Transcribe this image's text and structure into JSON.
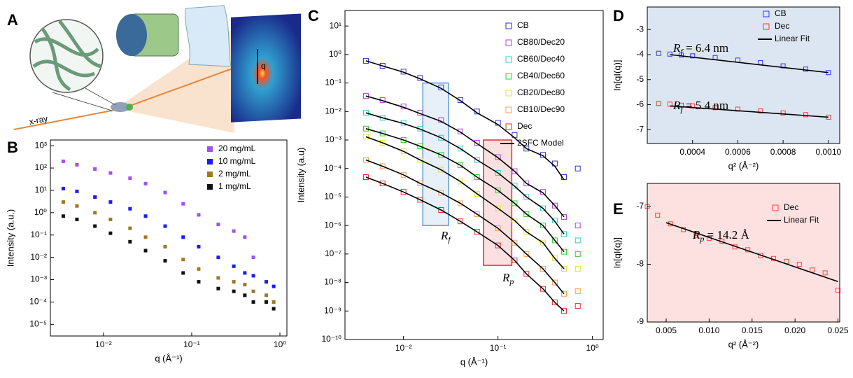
{
  "panels": [
    "A",
    "B",
    "C",
    "D",
    "E"
  ],
  "illustration": {
    "beam_label": "x-ray",
    "vector_label": "q"
  },
  "chart_data": [
    {
      "type": "scatter",
      "x_label": "q (Å⁻¹)",
      "y_label": "Intensity (a.u.)",
      "log_x": true,
      "log_y": true,
      "marker": "filled-square",
      "legend": "upper right",
      "xlim": [
        0.0025,
        1.2
      ],
      "ylim": [
        3e-06,
        1800
      ],
      "xticks": [
        {
          "value": 0.01,
          "label": "10⁻²"
        },
        {
          "value": 0.1,
          "label": "10⁻¹"
        },
        {
          "value": 1,
          "label": "10⁰"
        }
      ],
      "yticks": [
        {
          "value": 1e-05,
          "label": "10⁻⁵"
        },
        {
          "value": 0.0001,
          "label": "10⁻⁴"
        },
        {
          "value": 0.001,
          "label": "10⁻³"
        },
        {
          "value": 0.01,
          "label": "10⁻²"
        },
        {
          "value": 0.1,
          "label": "10⁻¹"
        },
        {
          "value": 1,
          "label": "10⁰"
        },
        {
          "value": 10,
          "label": "10¹"
        },
        {
          "value": 100,
          "label": "10²"
        },
        {
          "value": 1000,
          "label": "10³"
        }
      ],
      "x": [
        0.0035,
        0.005,
        0.008,
        0.012,
        0.02,
        0.03,
        0.05,
        0.08,
        0.12,
        0.2,
        0.3,
        0.4,
        0.5,
        0.7,
        0.85
      ],
      "series": [
        {
          "name": "20 mg/mL",
          "color": "#a050f0",
          "values": [
            200,
            140,
            90,
            60,
            35,
            20,
            8,
            2.5,
            0.8,
            0.3,
            0.15,
            0.08,
            0.01,
            null,
            null
          ]
        },
        {
          "name": "10 mg/mL",
          "color": "#1a1aff",
          "values": [
            12,
            9,
            5,
            3,
            1.5,
            0.7,
            0.25,
            0.08,
            0.03,
            0.01,
            0.004,
            0.002,
            0.0015,
            0.0008,
            0.0005
          ]
        },
        {
          "name": "2 mg/mL",
          "color": "#a07820",
          "values": [
            3,
            2,
            1,
            0.5,
            0.2,
            0.08,
            0.03,
            0.008,
            0.003,
            0.0012,
            0.0008,
            0.0006,
            0.0003,
            0.0002,
            0.0001
          ]
        },
        {
          "name": "1 mg/mL",
          "color": "#111111",
          "values": [
            0.7,
            0.5,
            0.25,
            0.12,
            0.05,
            0.02,
            0.007,
            0.002,
            0.0008,
            0.0004,
            0.0003,
            0.0002,
            0.0001,
            0.0001,
            5e-05
          ]
        }
      ]
    },
    {
      "type": "scatter",
      "x_label": "q (Å⁻¹)",
      "y_label": "Intensity (a.u)",
      "log_x": true,
      "log_y": true,
      "marker": "open-square",
      "legend": "upper right",
      "xlim": [
        0.0024,
        1.3
      ],
      "ylim": [
        1e-10,
        35
      ],
      "xticks": [
        {
          "value": 0.01,
          "label": "10⁻²"
        },
        {
          "value": 0.1,
          "label": "10⁻¹"
        },
        {
          "value": 1,
          "label": "10⁰"
        }
      ],
      "yticks": [
        {
          "value": 1e-10,
          "label": "10⁻¹⁰"
        },
        {
          "value": 1e-09,
          "label": "10⁻⁹"
        },
        {
          "value": 1e-08,
          "label": "10⁻⁸"
        },
        {
          "value": 1e-07,
          "label": "10⁻⁷"
        },
        {
          "value": 1e-06,
          "label": "10⁻⁶"
        },
        {
          "value": 1e-05,
          "label": "10⁻⁵"
        },
        {
          "value": 0.0001,
          "label": "10⁻⁴"
        },
        {
          "value": 0.001,
          "label": "10⁻³"
        },
        {
          "value": 0.01,
          "label": "10⁻²"
        },
        {
          "value": 0.1,
          "label": "10⁻¹"
        },
        {
          "value": 1,
          "label": "10⁰"
        },
        {
          "value": 10,
          "label": "10¹"
        }
      ],
      "x": [
        0.004,
        0.006,
        0.01,
        0.015,
        0.025,
        0.04,
        0.06,
        0.1,
        0.15,
        0.2,
        0.3,
        0.4,
        0.5,
        0.7
      ],
      "model": {
        "name": "2SFC Model",
        "color": "#000000"
      },
      "series": [
        {
          "name": "CB",
          "color": "#3333cc",
          "values": [
            0.6,
            0.4,
            0.25,
            0.15,
            0.07,
            0.025,
            0.01,
            0.004,
            0.0015,
            0.0005,
            0.0003,
            0.00015,
            5e-05,
            0.0001
          ],
          "model": [
            0.6,
            0.4,
            0.24,
            0.14,
            0.065,
            0.024,
            0.009,
            0.0035,
            0.0012,
            0.0005,
            0.00028,
            0.00012,
            4e-05,
            null
          ]
        },
        {
          "name": "CB80/Dec20",
          "color": "#b040d0",
          "values": [
            0.035,
            0.025,
            0.015,
            0.009,
            0.005,
            0.002,
            0.0008,
            0.00025,
            8e-05,
            3e-05,
            1.5e-05,
            5e-06,
            2e-06,
            1e-06
          ],
          "model": [
            0.035,
            0.024,
            0.014,
            0.0085,
            0.0045,
            0.0019,
            0.00075,
            0.00024,
            8e-05,
            3e-05,
            1.4e-05,
            5e-06,
            2e-06,
            null
          ]
        },
        {
          "name": "CB60/Dec40",
          "color": "#33cccc",
          "values": [
            0.009,
            0.006,
            0.004,
            0.0025,
            0.0012,
            0.0005,
            0.0002,
            7e-05,
            2.5e-05,
            1e-05,
            4e-06,
            1.5e-06,
            5e-07,
            3e-07
          ],
          "model": [
            0.009,
            0.006,
            0.0038,
            0.0024,
            0.0012,
            0.0005,
            0.0002,
            7e-05,
            2.4e-05,
            1e-05,
            4e-06,
            1.4e-06,
            5e-07,
            null
          ]
        },
        {
          "name": "CB40/Dec60",
          "color": "#33cc33",
          "values": [
            0.0025,
            0.0017,
            0.001,
            0.0006,
            0.0003,
            0.00013,
            5e-05,
            1.7e-05,
            6e-06,
            2.5e-06,
            1e-06,
            3e-07,
            1.2e-07,
            1e-07
          ],
          "model": [
            0.0025,
            0.0017,
            0.001,
            0.0006,
            0.0003,
            0.00013,
            5e-05,
            1.7e-05,
            6e-06,
            2.5e-06,
            1e-06,
            3e-07,
            1.2e-07,
            null
          ]
        },
        {
          "name": "CB20/Dec80",
          "color": "#e6e033",
          "values": [
            0.0013,
            0.0008,
            0.0004,
            0.0002,
            9e-05,
            3.5e-05,
            1.3e-05,
            4e-06,
            1.5e-06,
            6e-07,
            2.5e-07,
            7e-08,
            3e-08,
            3e-08
          ],
          "model": [
            0.0013,
            0.0008,
            0.0004,
            0.0002,
            9e-05,
            3.5e-05,
            1.3e-05,
            4e-06,
            1.5e-06,
            6e-07,
            2.5e-07,
            7e-08,
            3e-08,
            null
          ]
        },
        {
          "name": "CB10/Dec90",
          "color": "#f0a050",
          "values": [
            0.0002,
            0.00012,
            6e-05,
            3e-05,
            1.4e-05,
            6e-06,
            2.5e-06,
            8e-07,
            2.5e-07,
            1e-07,
            3e-08,
            1e-08,
            4e-09,
            5e-09
          ],
          "model": [
            0.0002,
            0.00012,
            6e-05,
            3e-05,
            1.4e-05,
            6e-06,
            2.5e-06,
            8e-07,
            2.5e-07,
            1e-07,
            3e-08,
            1e-08,
            4e-09,
            null
          ]
        },
        {
          "name": "Dec",
          "color": "#e03030",
          "values": [
            5e-05,
            3e-05,
            1.5e-05,
            8e-06,
            3.5e-06,
            1.4e-06,
            6e-07,
            2e-07,
            6e-08,
            2e-08,
            6e-09,
            2e-09,
            1e-09,
            1.5e-09
          ],
          "model": [
            5e-05,
            3e-05,
            1.5e-05,
            8e-06,
            3.5e-06,
            1.4e-06,
            6e-07,
            2e-07,
            6e-08,
            2e-08,
            6e-09,
            2e-09,
            1e-09,
            null
          ]
        }
      ],
      "regions": [
        {
          "symbol": "R",
          "subscript": "f",
          "color": "#5b9bd5",
          "xrange": [
            0.016,
            0.03
          ],
          "yrange": [
            1e-06,
            0.1
          ]
        },
        {
          "symbol": "R",
          "subscript": "p",
          "color": "#e03030",
          "xrange": [
            0.07,
            0.14
          ],
          "yrange": [
            4e-08,
            0.001
          ]
        }
      ]
    },
    {
      "type": "scatter",
      "x_label": "q² (Å⁻²)",
      "y_label": "ln[qI(q)]",
      "marker": "open-square",
      "legend": "upper right",
      "background": "#dce6f2",
      "xlim": [
        0.0002,
        0.00105
      ],
      "ylim": [
        -7.55,
        -2.1
      ],
      "xticks": [
        0.0004,
        0.0006,
        0.0008,
        {
          "value": 0.001,
          "label": "0.0010"
        }
      ],
      "yticks": [
        -7,
        -6,
        -5,
        -4,
        -3
      ],
      "series": [
        {
          "name": "CB",
          "color": "#3333ff",
          "x": [
            0.00025,
            0.0003,
            0.00035,
            0.0004,
            0.0005,
            0.0006,
            0.0007,
            0.0008,
            0.0009,
            0.001
          ],
          "values": [
            -3.95,
            -3.98,
            -4.02,
            -4.05,
            -4.12,
            -4.22,
            -4.32,
            -4.45,
            -4.58,
            -4.72
          ]
        },
        {
          "name": "Dec",
          "color": "#ff3333",
          "x": [
            0.00025,
            0.0003,
            0.00035,
            0.0004,
            0.0005,
            0.0006,
            0.0007,
            0.0008,
            0.0009,
            0.001
          ],
          "values": [
            -5.95,
            -5.98,
            -6.02,
            -6.05,
            -6.12,
            -6.18,
            -6.25,
            -6.33,
            -6.4,
            -6.5
          ]
        }
      ],
      "fit": {
        "name": "Linear Fit",
        "color": "#000000",
        "segments": [
          {
            "x": [
              0.0003,
              0.001
            ],
            "values": [
              -4.0,
              -4.72
            ]
          },
          {
            "x": [
              0.0003,
              0.001
            ],
            "values": [
              -6.05,
              -6.5
            ]
          }
        ]
      },
      "annotations": [
        {
          "symbol": "R",
          "subscript": "f",
          "text": " = 6.4 nm"
        },
        {
          "symbol": "R",
          "subscript": "f",
          "text": " = 5.4 nm"
        }
      ]
    },
    {
      "type": "scatter",
      "x_label": "q² (Å⁻²)",
      "y_label": "ln[qI(q)]",
      "marker": "open-square",
      "legend": "upper right",
      "background": "#fde0e0",
      "xlim": [
        0.0028,
        0.0252
      ],
      "ylim": [
        -9,
        -6.6
      ],
      "xticks": [
        0.005,
        {
          "value": 0.01,
          "label": "0.010"
        },
        0.015,
        {
          "value": 0.02,
          "label": "0.020"
        },
        0.025
      ],
      "yticks": [
        -9,
        -8,
        -7
      ],
      "series": [
        {
          "name": "Dec",
          "color": "#ff4040",
          "x": [
            0.0028,
            0.004,
            0.0055,
            0.007,
            0.0085,
            0.01,
            0.0115,
            0.013,
            0.0145,
            0.016,
            0.0175,
            0.019,
            0.0205,
            0.022,
            0.0235,
            0.025
          ],
          "values": [
            -7.0,
            -7.15,
            -7.3,
            -7.4,
            -7.5,
            -7.55,
            -7.6,
            -7.7,
            -7.75,
            -7.85,
            -7.9,
            -7.95,
            -8.0,
            -8.1,
            -8.15,
            -8.45
          ]
        }
      ],
      "fit": {
        "name": "Linear Fit",
        "color": "#000000",
        "segments": [
          {
            "x": [
              0.005,
              0.025
            ],
            "values": [
              -7.28,
              -8.3
            ]
          }
        ]
      },
      "annotations": [
        {
          "symbol": "R",
          "subscript": "p",
          "text": " = 14.2 Å"
        }
      ]
    }
  ]
}
